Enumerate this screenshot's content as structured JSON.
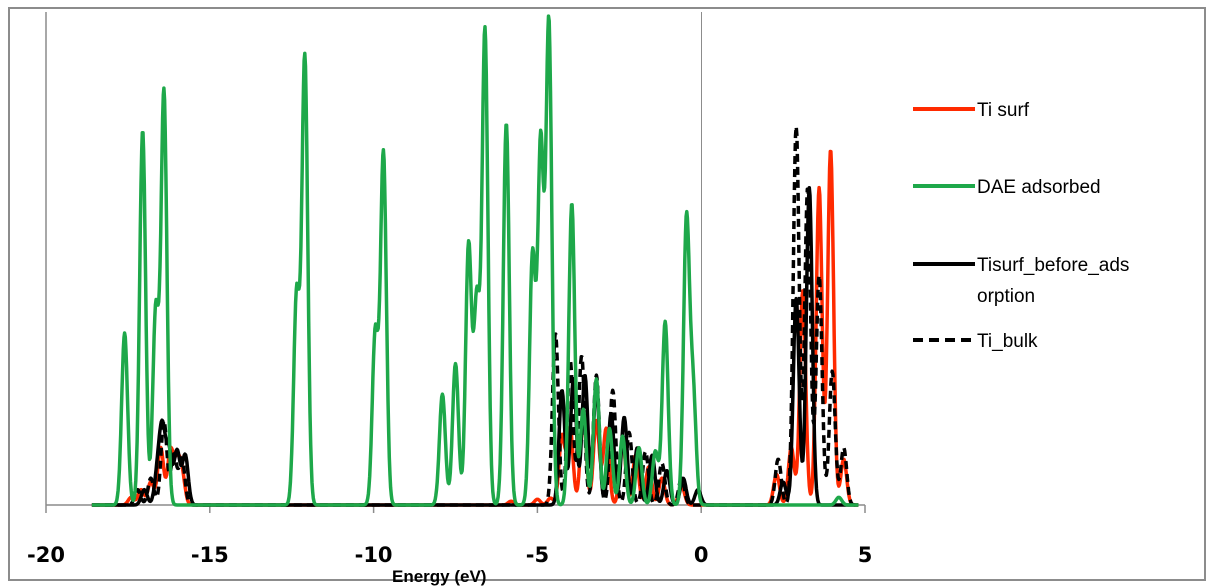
{
  "chart_data": {
    "type": "line",
    "title": "",
    "xlabel": "Energy (eV)",
    "ylabel": "",
    "xlim": [
      -20,
      5
    ],
    "ylim": [
      0,
      1.0
    ],
    "x_ticks": [
      "-20",
      "-15",
      "-10",
      "-5",
      "0",
      "5"
    ],
    "x_tick_values": [
      -20,
      -15,
      -10,
      -5,
      0,
      5
    ],
    "grid": false,
    "legend_position": "right",
    "series": [
      {
        "name": "Ti surf",
        "color": "#ff2a00",
        "dash": "solid",
        "peaks": [
          [
            -17.4,
            0.02
          ],
          [
            -17.1,
            0.04
          ],
          [
            -16.8,
            0.06
          ],
          [
            -16.5,
            0.15
          ],
          [
            -16.2,
            0.14
          ],
          [
            -16.0,
            0.1
          ],
          [
            -15.85,
            0.08
          ],
          [
            -5.8,
            0.01
          ],
          [
            -5.0,
            0.015
          ],
          [
            -4.6,
            0.018
          ],
          [
            -4.25,
            0.18
          ],
          [
            -4.0,
            0.2
          ],
          [
            -3.6,
            0.24
          ],
          [
            -3.2,
            0.22
          ],
          [
            -2.9,
            0.2
          ],
          [
            -2.4,
            0.17
          ],
          [
            -2.0,
            0.13
          ],
          [
            -1.6,
            0.1
          ],
          [
            -1.2,
            0.07
          ],
          [
            -0.6,
            0.05
          ],
          [
            2.3,
            0.08
          ],
          [
            2.75,
            0.15
          ],
          [
            3.1,
            0.56
          ],
          [
            3.6,
            0.83
          ],
          [
            3.95,
            0.93
          ],
          [
            4.35,
            0.12
          ]
        ]
      },
      {
        "name": "DAE adsorbed",
        "color": "#1ea84a",
        "dash": "solid",
        "peaks": [
          [
            -17.6,
            0.45
          ],
          [
            -17.05,
            0.98
          ],
          [
            -16.65,
            0.51
          ],
          [
            -16.4,
            1.08
          ],
          [
            -12.35,
            0.55
          ],
          [
            -12.1,
            1.17
          ],
          [
            -9.95,
            0.45
          ],
          [
            -9.7,
            0.92
          ],
          [
            -7.9,
            0.29
          ],
          [
            -7.5,
            0.37
          ],
          [
            -7.1,
            0.68
          ],
          [
            -6.85,
            0.53
          ],
          [
            -6.6,
            1.24
          ],
          [
            -5.95,
            1.0
          ],
          [
            -5.15,
            0.65
          ],
          [
            -4.9,
            0.94
          ],
          [
            -4.65,
            1.26
          ],
          [
            -3.95,
            0.79
          ],
          [
            -3.6,
            0.25
          ],
          [
            -3.2,
            0.33
          ],
          [
            -2.8,
            0.2
          ],
          [
            -2.4,
            0.18
          ],
          [
            -1.9,
            0.15
          ],
          [
            -1.4,
            0.14
          ],
          [
            -1.1,
            0.48
          ],
          [
            -0.45,
            0.74
          ],
          [
            -0.25,
            0.3
          ],
          [
            4.2,
            0.02
          ]
        ]
      },
      {
        "name": "Tisurf_before_adsorption",
        "color": "#000000",
        "dash": "solid",
        "peaks": [
          [
            -17.0,
            0.04
          ],
          [
            -16.6,
            0.08
          ],
          [
            -16.45,
            0.19
          ],
          [
            -16.25,
            0.14
          ],
          [
            -16.0,
            0.14
          ],
          [
            -15.75,
            0.13
          ],
          [
            -4.25,
            0.3
          ],
          [
            -3.9,
            0.33
          ],
          [
            -3.55,
            0.34
          ],
          [
            -3.2,
            0.31
          ],
          [
            -2.75,
            0.24
          ],
          [
            -2.35,
            0.23
          ],
          [
            -1.95,
            0.15
          ],
          [
            -1.5,
            0.13
          ],
          [
            -1.05,
            0.09
          ],
          [
            -0.55,
            0.07
          ],
          [
            -0.1,
            0.04
          ],
          [
            2.5,
            0.06
          ],
          [
            2.9,
            0.54
          ],
          [
            3.3,
            0.83
          ]
        ]
      },
      {
        "name": "Ti_bulk",
        "color": "#000000",
        "dash": "dashed",
        "peaks": [
          [
            -17.2,
            0.04
          ],
          [
            -16.8,
            0.07
          ],
          [
            -16.4,
            0.22
          ],
          [
            -16.1,
            0.13
          ],
          [
            -15.85,
            0.12
          ],
          [
            -4.45,
            0.45
          ],
          [
            -4.0,
            0.38
          ],
          [
            -3.65,
            0.39
          ],
          [
            -3.2,
            0.34
          ],
          [
            -2.7,
            0.3
          ],
          [
            -2.2,
            0.19
          ],
          [
            -1.7,
            0.14
          ],
          [
            -1.2,
            0.11
          ],
          [
            -0.6,
            0.07
          ],
          [
            2.35,
            0.12
          ],
          [
            2.9,
            0.99
          ],
          [
            3.25,
            0.83
          ],
          [
            3.6,
            0.6
          ],
          [
            4.0,
            0.35
          ],
          [
            4.35,
            0.15
          ]
        ]
      }
    ]
  },
  "legend": {
    "items": [
      {
        "label": "Ti surf",
        "color": "#ff2a00",
        "dash": "solid"
      },
      {
        "label": "DAE adsorbed",
        "color": "#1ea84a",
        "dash": "solid"
      },
      {
        "label_line1": "Tisurf_before_ads",
        "label_line2": "orption",
        "color": "#000000",
        "dash": "solid"
      },
      {
        "label": "Ti_bulk",
        "color": "#000000",
        "dash": "dashed"
      }
    ]
  }
}
